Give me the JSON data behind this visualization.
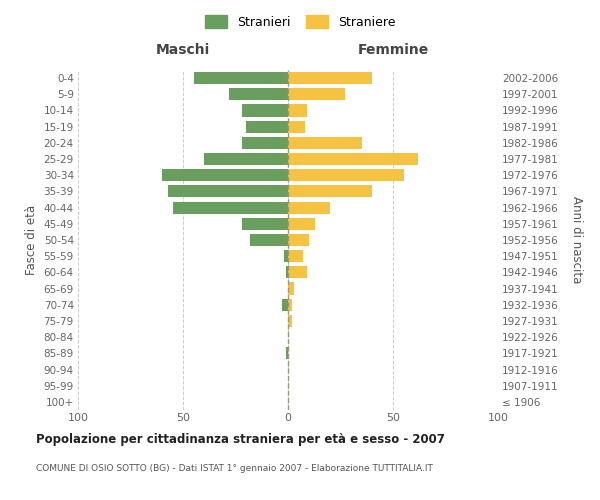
{
  "age_groups": [
    "100+",
    "95-99",
    "90-94",
    "85-89",
    "80-84",
    "75-79",
    "70-74",
    "65-69",
    "60-64",
    "55-59",
    "50-54",
    "45-49",
    "40-44",
    "35-39",
    "30-34",
    "25-29",
    "20-24",
    "15-19",
    "10-14",
    "5-9",
    "0-4"
  ],
  "birth_years": [
    "≤ 1906",
    "1907-1911",
    "1912-1916",
    "1917-1921",
    "1922-1926",
    "1927-1931",
    "1932-1936",
    "1937-1941",
    "1942-1946",
    "1947-1951",
    "1952-1956",
    "1957-1961",
    "1962-1966",
    "1967-1971",
    "1972-1976",
    "1977-1981",
    "1982-1986",
    "1987-1991",
    "1992-1996",
    "1997-2001",
    "2002-2006"
  ],
  "maschi": [
    0,
    0,
    0,
    1,
    0,
    0,
    3,
    0,
    1,
    2,
    18,
    22,
    55,
    57,
    60,
    40,
    22,
    20,
    22,
    28,
    45
  ],
  "femmine": [
    0,
    0,
    0,
    0,
    0,
    2,
    2,
    3,
    9,
    7,
    10,
    13,
    20,
    40,
    55,
    62,
    35,
    8,
    9,
    27,
    40
  ],
  "color_maschi": "#6a9e5e",
  "color_femmine": "#f5c242",
  "title": "Popolazione per cittadinanza straniera per età e sesso - 2007",
  "subtitle": "COMUNE DI OSIO SOTTO (BG) - Dati ISTAT 1° gennaio 2007 - Elaborazione TUTTITALIA.IT",
  "ylabel_left": "Fasce di età",
  "ylabel_right": "Anni di nascita",
  "xlabel_left": "Maschi",
  "xlabel_right": "Femmine",
  "legend_maschi": "Stranieri",
  "legend_femmine": "Straniere",
  "xlim": 100,
  "background_color": "#ffffff",
  "grid_color": "#cccccc"
}
